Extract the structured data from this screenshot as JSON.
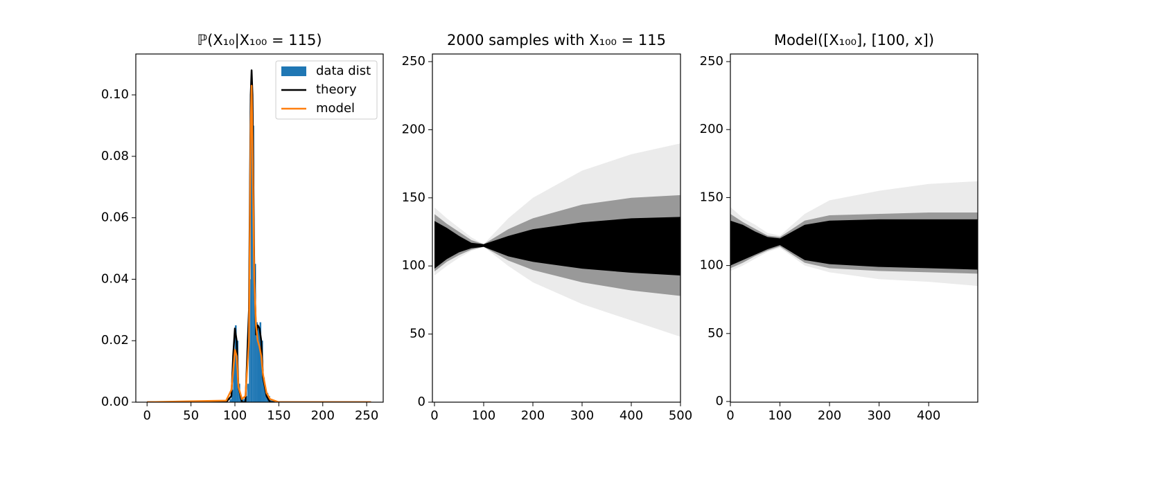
{
  "chart_data": [
    {
      "type": "histogram",
      "title": "ℙ(X₁₀|X₁₀₀ = 115)",
      "name": "data dist",
      "color": "#1f77b4",
      "bins": [
        94,
        96,
        98,
        100,
        102,
        104,
        106,
        108,
        110,
        112,
        114,
        116,
        118,
        120,
        122,
        124,
        126,
        128,
        130,
        132,
        134,
        136,
        138,
        140,
        142,
        144,
        146
      ],
      "values": [
        0.001,
        0.004,
        0.015,
        0.025,
        0.02,
        0.006,
        0.002,
        0.001,
        0.001,
        0.002,
        0.006,
        0.04,
        0.104,
        0.09,
        0.045,
        0.026,
        0.024,
        0.026,
        0.02,
        0.008,
        0.004,
        0.003,
        0.002,
        0.001,
        0.0005,
        0.0003
      ],
      "lines": [
        {
          "name": "theory",
          "color": "#000000",
          "x": [
            0,
            90,
            96,
            98,
            100,
            102,
            104,
            108,
            112,
            116,
            118,
            119,
            120,
            122,
            124,
            126,
            128,
            130,
            132,
            136,
            140,
            150,
            255
          ],
          "values": [
            0,
            0,
            0.002,
            0.015,
            0.024,
            0.02,
            0.005,
            0,
            0,
            0.03,
            0.1,
            0.108,
            0.1,
            0.045,
            0.022,
            0.025,
            0.024,
            0.02,
            0.008,
            0.002,
            0,
            0,
            0
          ]
        },
        {
          "name": "model",
          "color": "#ff7f0e",
          "x": [
            0,
            90,
            96,
            98,
            100,
            102,
            104,
            108,
            112,
            116,
            118,
            119,
            120,
            122,
            124,
            126,
            128,
            130,
            132,
            136,
            140,
            150,
            255
          ],
          "values": [
            0,
            0.0005,
            0.004,
            0.01,
            0.017,
            0.015,
            0.005,
            0.001,
            0.002,
            0.02,
            0.09,
            0.103,
            0.085,
            0.04,
            0.025,
            0.02,
            0.018,
            0.015,
            0.009,
            0.003,
            0.001,
            0,
            0
          ]
        }
      ],
      "legend": "upper right",
      "xlim": [
        -12.8,
        268.8
      ],
      "xticks": [
        0,
        50,
        100,
        150,
        200,
        250
      ],
      "ylim": [
        0,
        0.1133
      ],
      "yticks": [
        {
          "value": 0,
          "label": "0.00"
        },
        {
          "value": 0.02,
          "label": "0.02"
        },
        {
          "value": 0.04,
          "label": "0.04"
        },
        {
          "value": 0.06,
          "label": "0.06"
        },
        {
          "value": 0.08,
          "label": "0.08"
        },
        {
          "value": 0.1,
          "label": "0.10"
        }
      ]
    },
    {
      "type": "density",
      "title": "2000 samples with X₁₀₀ = 115",
      "color": "#000000",
      "bands": [
        {
          "opacity": 0.08,
          "x": [
            0,
            25,
            50,
            75,
            100,
            150,
            200,
            300,
            400,
            500
          ],
          "low": [
            93,
            100,
            106,
            111,
            114,
            100,
            88,
            72,
            60,
            48
          ],
          "high": [
            143,
            135,
            128,
            121,
            116,
            135,
            150,
            170,
            182,
            190
          ]
        },
        {
          "opacity": 0.35,
          "x": [
            0,
            25,
            50,
            75,
            100,
            150,
            200,
            300,
            400,
            500
          ],
          "low": [
            96,
            103,
            108,
            112,
            114,
            104,
            97,
            88,
            82,
            78
          ],
          "high": [
            138,
            131,
            125,
            119,
            116,
            127,
            135,
            145,
            150,
            152
          ]
        },
        {
          "opacity": 1,
          "x": [
            0,
            25,
            50,
            75,
            100,
            150,
            200,
            300,
            400,
            500
          ],
          "low": [
            98,
            105,
            110,
            113,
            114,
            107,
            103,
            98,
            95,
            93
          ],
          "high": [
            133,
            128,
            122,
            117,
            116,
            122,
            127,
            132,
            135,
            136
          ]
        }
      ],
      "xlim": [
        -4.2,
        500
      ],
      "xticks": [
        0,
        100,
        200,
        300,
        400,
        500
      ],
      "ylim": [
        0,
        255.6
      ],
      "yticks": [
        0,
        50,
        100,
        150,
        200,
        250
      ]
    },
    {
      "type": "density",
      "title": "Model([X₁₀₀], [100, x])",
      "color": "#000000",
      "bands": [
        {
          "opacity": 0.08,
          "x": [
            0,
            25,
            50,
            75,
            100,
            150,
            200,
            300,
            400,
            499
          ],
          "low": [
            96,
            100,
            105,
            110,
            113,
            100,
            95,
            90,
            88,
            85
          ],
          "high": [
            143,
            135,
            130,
            124,
            122,
            138,
            148,
            155,
            160,
            162
          ]
        },
        {
          "opacity": 0.35,
          "x": [
            0,
            25,
            50,
            75,
            100,
            150,
            200,
            300,
            400,
            499
          ],
          "low": [
            98,
            102,
            107,
            111,
            114,
            102,
            98,
            96,
            95,
            94
          ],
          "high": [
            138,
            132,
            127,
            122,
            121,
            133,
            137,
            138,
            139,
            139
          ]
        },
        {
          "opacity": 1,
          "x": [
            0,
            25,
            50,
            75,
            100,
            150,
            200,
            300,
            400,
            499
          ],
          "low": [
            100,
            104,
            108,
            112,
            115,
            104,
            101,
            99,
            98,
            97
          ],
          "high": [
            133,
            130,
            125,
            121,
            120,
            130,
            133,
            134,
            134,
            134
          ]
        }
      ],
      "xlim": [
        0,
        499
      ],
      "xticks": [
        0,
        100,
        200,
        300,
        400
      ],
      "ylim": [
        -0.5,
        255.6
      ],
      "yticks": [
        0,
        50,
        100,
        150,
        200,
        250
      ]
    }
  ]
}
